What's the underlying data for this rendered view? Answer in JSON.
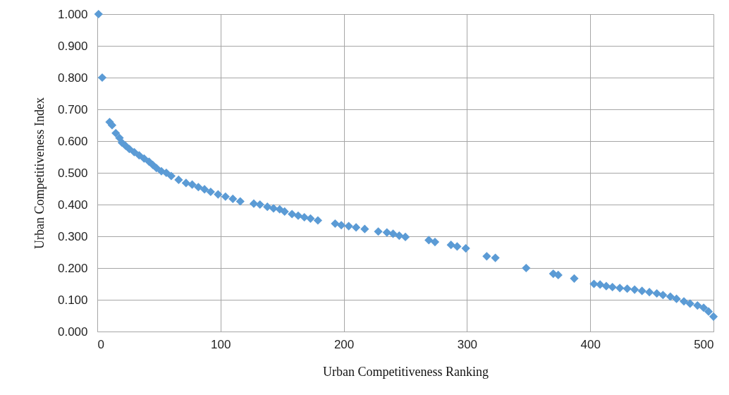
{
  "chart_data": {
    "type": "scatter",
    "xlabel": "Urban Competitiveness Ranking",
    "ylabel": "Urban Competitiveness Index",
    "marker": "diamond",
    "grid": true,
    "legend": false,
    "xlim": [
      0,
      500
    ],
    "xticks": [
      0,
      100,
      200,
      300,
      400,
      500
    ],
    "ylim": [
      0,
      1
    ],
    "yticks": [
      {
        "value": 0,
        "label": "0.000"
      },
      {
        "value": 0.1,
        "label": "0.100"
      },
      {
        "value": 0.2,
        "label": "0.200"
      },
      {
        "value": 0.3,
        "label": "0.300"
      },
      {
        "value": 0.4,
        "label": "0.400"
      },
      {
        "value": 0.5,
        "label": "0.500"
      },
      {
        "value": 0.6,
        "label": "0.600"
      },
      {
        "value": 0.7,
        "label": "0.700"
      },
      {
        "value": 0.8,
        "label": "0.800"
      },
      {
        "value": 0.9,
        "label": "0.900"
      },
      {
        "value": 1,
        "label": "1.000"
      }
    ],
    "series": [
      {
        "color": "#5b9bd5",
        "x": [
          1,
          4,
          10,
          12,
          15,
          18,
          20,
          23,
          26,
          30,
          34,
          38,
          42,
          45,
          48,
          52,
          56,
          60,
          66,
          72,
          77,
          82,
          87,
          92,
          98,
          104,
          110,
          116,
          127,
          132,
          138,
          143,
          148,
          152,
          158,
          163,
          168,
          173,
          179,
          193,
          198,
          204,
          210,
          217,
          228,
          235,
          240,
          245,
          250,
          269,
          274,
          287,
          292,
          299,
          316,
          323,
          348,
          370,
          374,
          387,
          403,
          408,
          413,
          418,
          424,
          430,
          436,
          442,
          448,
          454,
          459,
          465,
          470,
          476,
          481,
          487,
          492,
          496,
          500
        ],
        "values": [
          1.0,
          0.8,
          0.66,
          0.65,
          0.625,
          0.61,
          0.595,
          0.585,
          0.575,
          0.565,
          0.555,
          0.545,
          0.535,
          0.525,
          0.515,
          0.505,
          0.5,
          0.49,
          0.478,
          0.468,
          0.463,
          0.455,
          0.448,
          0.44,
          0.432,
          0.425,
          0.418,
          0.41,
          0.403,
          0.4,
          0.393,
          0.388,
          0.385,
          0.378,
          0.37,
          0.365,
          0.36,
          0.356,
          0.35,
          0.34,
          0.335,
          0.332,
          0.328,
          0.323,
          0.315,
          0.312,
          0.308,
          0.302,
          0.298,
          0.288,
          0.282,
          0.273,
          0.268,
          0.262,
          0.237,
          0.232,
          0.2,
          0.182,
          0.178,
          0.167,
          0.15,
          0.148,
          0.143,
          0.14,
          0.137,
          0.135,
          0.132,
          0.128,
          0.124,
          0.12,
          0.115,
          0.11,
          0.103,
          0.095,
          0.088,
          0.082,
          0.075,
          0.063,
          0.047
        ]
      }
    ]
  }
}
